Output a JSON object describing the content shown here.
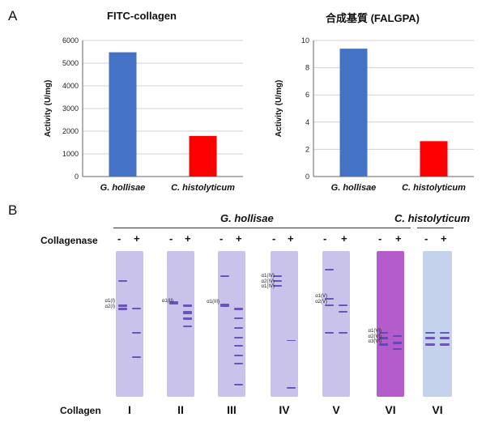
{
  "panel_a_label": "A",
  "panel_b_label": "B",
  "chart_data": [
    {
      "type": "bar",
      "title": "FITC-collagen",
      "categories": [
        "G. hollisae",
        "C. histolyticum"
      ],
      "values": [
        5480,
        1790
      ],
      "ylabel": "Activity (U/mg)",
      "ylim": [
        0,
        6000
      ],
      "yticks": [
        "0",
        "1000",
        "2000",
        "3000",
        "4000",
        "5000",
        "6000"
      ],
      "colors": [
        "#4472C4",
        "#FF0000"
      ],
      "grid": true,
      "legend": "none"
    },
    {
      "type": "bar",
      "title": "合成基質 (FALGPA)",
      "categories": [
        "G. hollisae",
        "C. histolyticum"
      ],
      "values": [
        9.4,
        2.6
      ],
      "ylabel": "Activity (U/mg)",
      "ylim": [
        0,
        10
      ],
      "yticks": [
        "0",
        "2",
        "4",
        "6",
        "8",
        "10"
      ],
      "colors": [
        "#4472C4",
        "#FF0000"
      ],
      "grid": true,
      "legend": "none"
    }
  ],
  "gel_panel": {
    "species_left": "G. hollisae",
    "species_right": "C. histolyticum",
    "collagenase_label": "Collagenase",
    "collagen_label": "Collagen",
    "minus": "-",
    "plus": "+",
    "collagen_types": [
      "I",
      "II",
      "III",
      "IV",
      "V",
      "VI",
      "VI"
    ],
    "band_labels": {
      "I": [
        "α1(I)",
        "α2(I)"
      ],
      "II": [
        "α1(II)"
      ],
      "III": [
        "α1(III)"
      ],
      "IV": [
        "α1(IV)",
        "α2(IV)",
        "α1(IV)"
      ],
      "V": [
        "α1(V)",
        "α2(V)"
      ],
      "VI": [
        "α1(VI)",
        "α2(VI)",
        "α3(VI)"
      ]
    },
    "colors": {
      "gel": "#c9c2ea",
      "band": "#5a3fb0",
      "gel_vi": "#b55ccc",
      "gel_vi_clost": "#c4d2ec"
    }
  }
}
